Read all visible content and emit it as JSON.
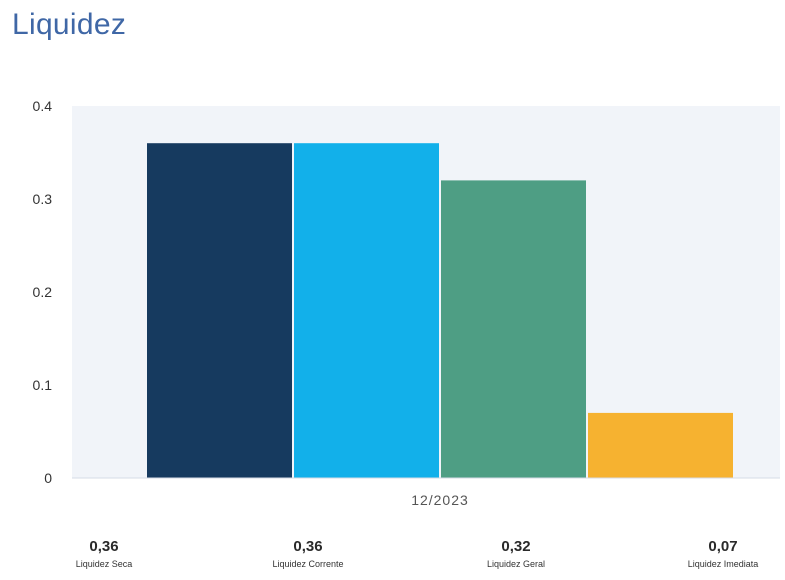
{
  "page": {
    "title": "Liquidez"
  },
  "chart_data": {
    "type": "bar",
    "categories": [
      "12/2023"
    ],
    "series": [
      {
        "name": "Liquidez Seca",
        "values": [
          0.36
        ],
        "color": "#163a5f"
      },
      {
        "name": "Liquidez Corrente",
        "values": [
          0.36
        ],
        "color": "#12b0ea"
      },
      {
        "name": "Liquidez Geral",
        "values": [
          0.32
        ],
        "color": "#4e9e84"
      },
      {
        "name": "Liquidez Imediata",
        "values": [
          0.07
        ],
        "color": "#f6b230"
      }
    ],
    "ylim": [
      0,
      0.4
    ],
    "yticks": [
      "0",
      "0.1",
      "0.2",
      "0.3",
      "0.4"
    ],
    "grid": false,
    "plot_background": "#f1f4f9",
    "legend": {
      "placement": "bottom",
      "items": [
        {
          "value": "0,36",
          "label": "Liquidez Seca"
        },
        {
          "value": "0,36",
          "label": "Liquidez Corrente"
        },
        {
          "value": "0,32",
          "label": "Liquidez Geral"
        },
        {
          "value": "0,07",
          "label": "Liquidez Imediata"
        }
      ]
    }
  }
}
